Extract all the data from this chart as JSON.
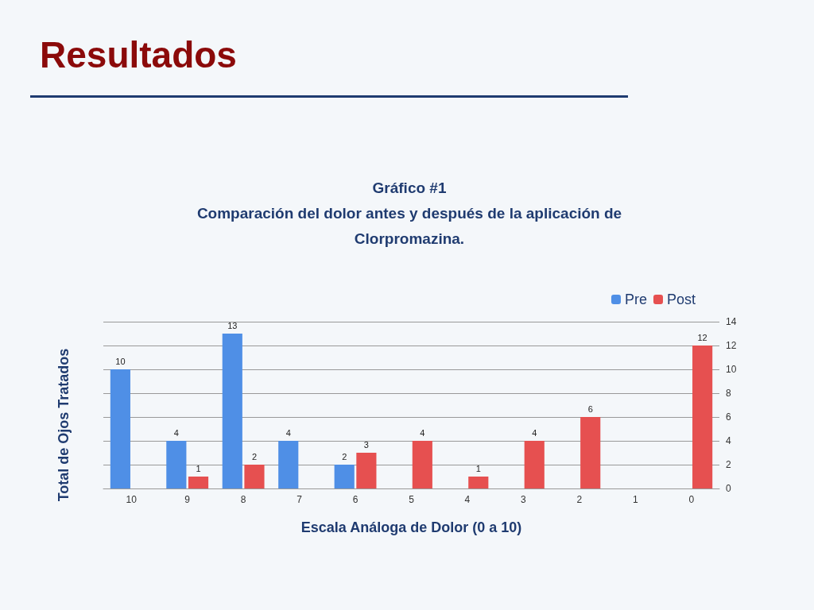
{
  "chart_data": {
    "type": "bar",
    "title": "Resultados",
    "subtitle": "Gráfico #1\nComparación del dolor antes y después de la aplicación de\nClorpromazina.",
    "xlabel": "Escala Análoga de Dolor (0 a 10)",
    "ylabel": "Total de Ojos Tratados",
    "categories": [
      "10",
      "9",
      "8",
      "7",
      "6",
      "5",
      "4",
      "3",
      "2",
      "1",
      "0"
    ],
    "series": [
      {
        "name": "Pre",
        "color": "#4f8fe6",
        "values": [
          10,
          4,
          13,
          4,
          2,
          0,
          0,
          0,
          0,
          0,
          0
        ],
        "value_labels": [
          "10",
          "4",
          "13",
          "4",
          "2",
          null,
          null,
          null,
          null,
          null,
          null
        ]
      },
      {
        "name": "Post",
        "color": "#e65050",
        "values": [
          0,
          1,
          2,
          0,
          3,
          4,
          1,
          4,
          6,
          0,
          12
        ],
        "value_labels": [
          null,
          "1",
          "2",
          null,
          "3",
          "4",
          "1",
          "4",
          "6",
          null,
          "12"
        ]
      }
    ],
    "ylim": [
      0,
      14
    ],
    "yticks": [
      0,
      2,
      4,
      6,
      8,
      10,
      12,
      14
    ],
    "grid": "y",
    "legend": "top right"
  }
}
